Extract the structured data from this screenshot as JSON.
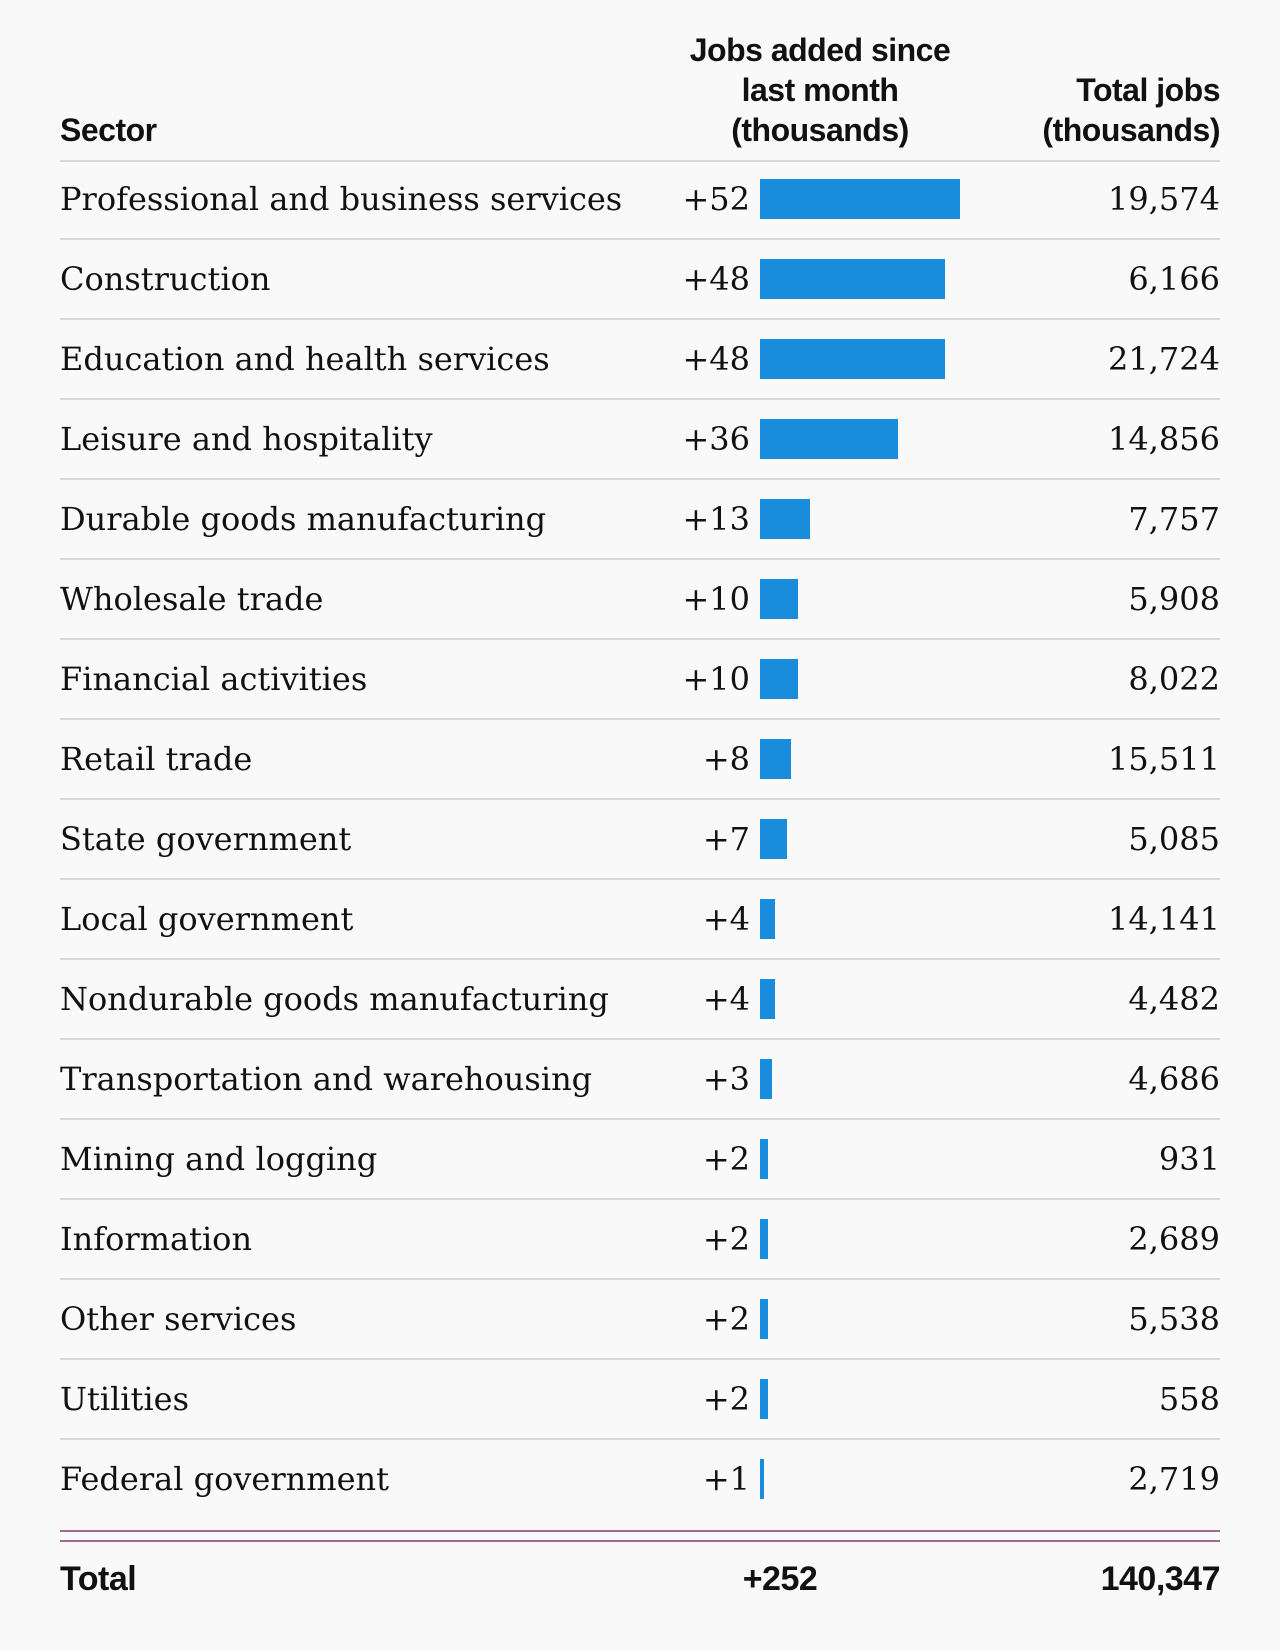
{
  "header": {
    "sector": "Sector",
    "added": "Jobs added since last month (thousands)",
    "total": "Total jobs (thousands)"
  },
  "colors": {
    "bar": "#1a8cdc",
    "total_rule": "#a26a8e"
  },
  "chart_data": {
    "type": "table",
    "columns": [
      "Sector",
      "Jobs added since last month (thousands)",
      "Total jobs (thousands)"
    ],
    "rows": [
      {
        "sector": "Professional and business services",
        "added": 52,
        "added_label": "+52",
        "total": "19,574"
      },
      {
        "sector": "Construction",
        "added": 48,
        "added_label": "+48",
        "total": "6,166"
      },
      {
        "sector": "Education and health services",
        "added": 48,
        "added_label": "+48",
        "total": "21,724"
      },
      {
        "sector": "Leisure and hospitality",
        "added": 36,
        "added_label": "+36",
        "total": "14,856"
      },
      {
        "sector": "Durable goods manufacturing",
        "added": 13,
        "added_label": "+13",
        "total": "7,757"
      },
      {
        "sector": "Wholesale trade",
        "added": 10,
        "added_label": "+10",
        "total": "5,908"
      },
      {
        "sector": "Financial activities",
        "added": 10,
        "added_label": "+10",
        "total": "8,022"
      },
      {
        "sector": "Retail trade",
        "added": 8,
        "added_label": "+8",
        "total": "15,511"
      },
      {
        "sector": "State government",
        "added": 7,
        "added_label": "+7",
        "total": "5,085"
      },
      {
        "sector": "Local government",
        "added": 4,
        "added_label": "+4",
        "total": "14,141"
      },
      {
        "sector": "Nondurable goods manufacturing",
        "added": 4,
        "added_label": "+4",
        "total": "4,482"
      },
      {
        "sector": "Transportation and warehousing",
        "added": 3,
        "added_label": "+3",
        "total": "4,686"
      },
      {
        "sector": "Mining and logging",
        "added": 2,
        "added_label": "+2",
        "total": "931"
      },
      {
        "sector": "Information",
        "added": 2,
        "added_label": "+2",
        "total": "2,689"
      },
      {
        "sector": "Other services",
        "added": 2,
        "added_label": "+2",
        "total": "5,538"
      },
      {
        "sector": "Utilities",
        "added": 2,
        "added_label": "+2",
        "total": "558"
      },
      {
        "sector": "Federal government",
        "added": 1,
        "added_label": "+1",
        "total": "2,719"
      }
    ],
    "total": {
      "label": "Total",
      "added": "+252",
      "total": "140,347"
    }
  }
}
